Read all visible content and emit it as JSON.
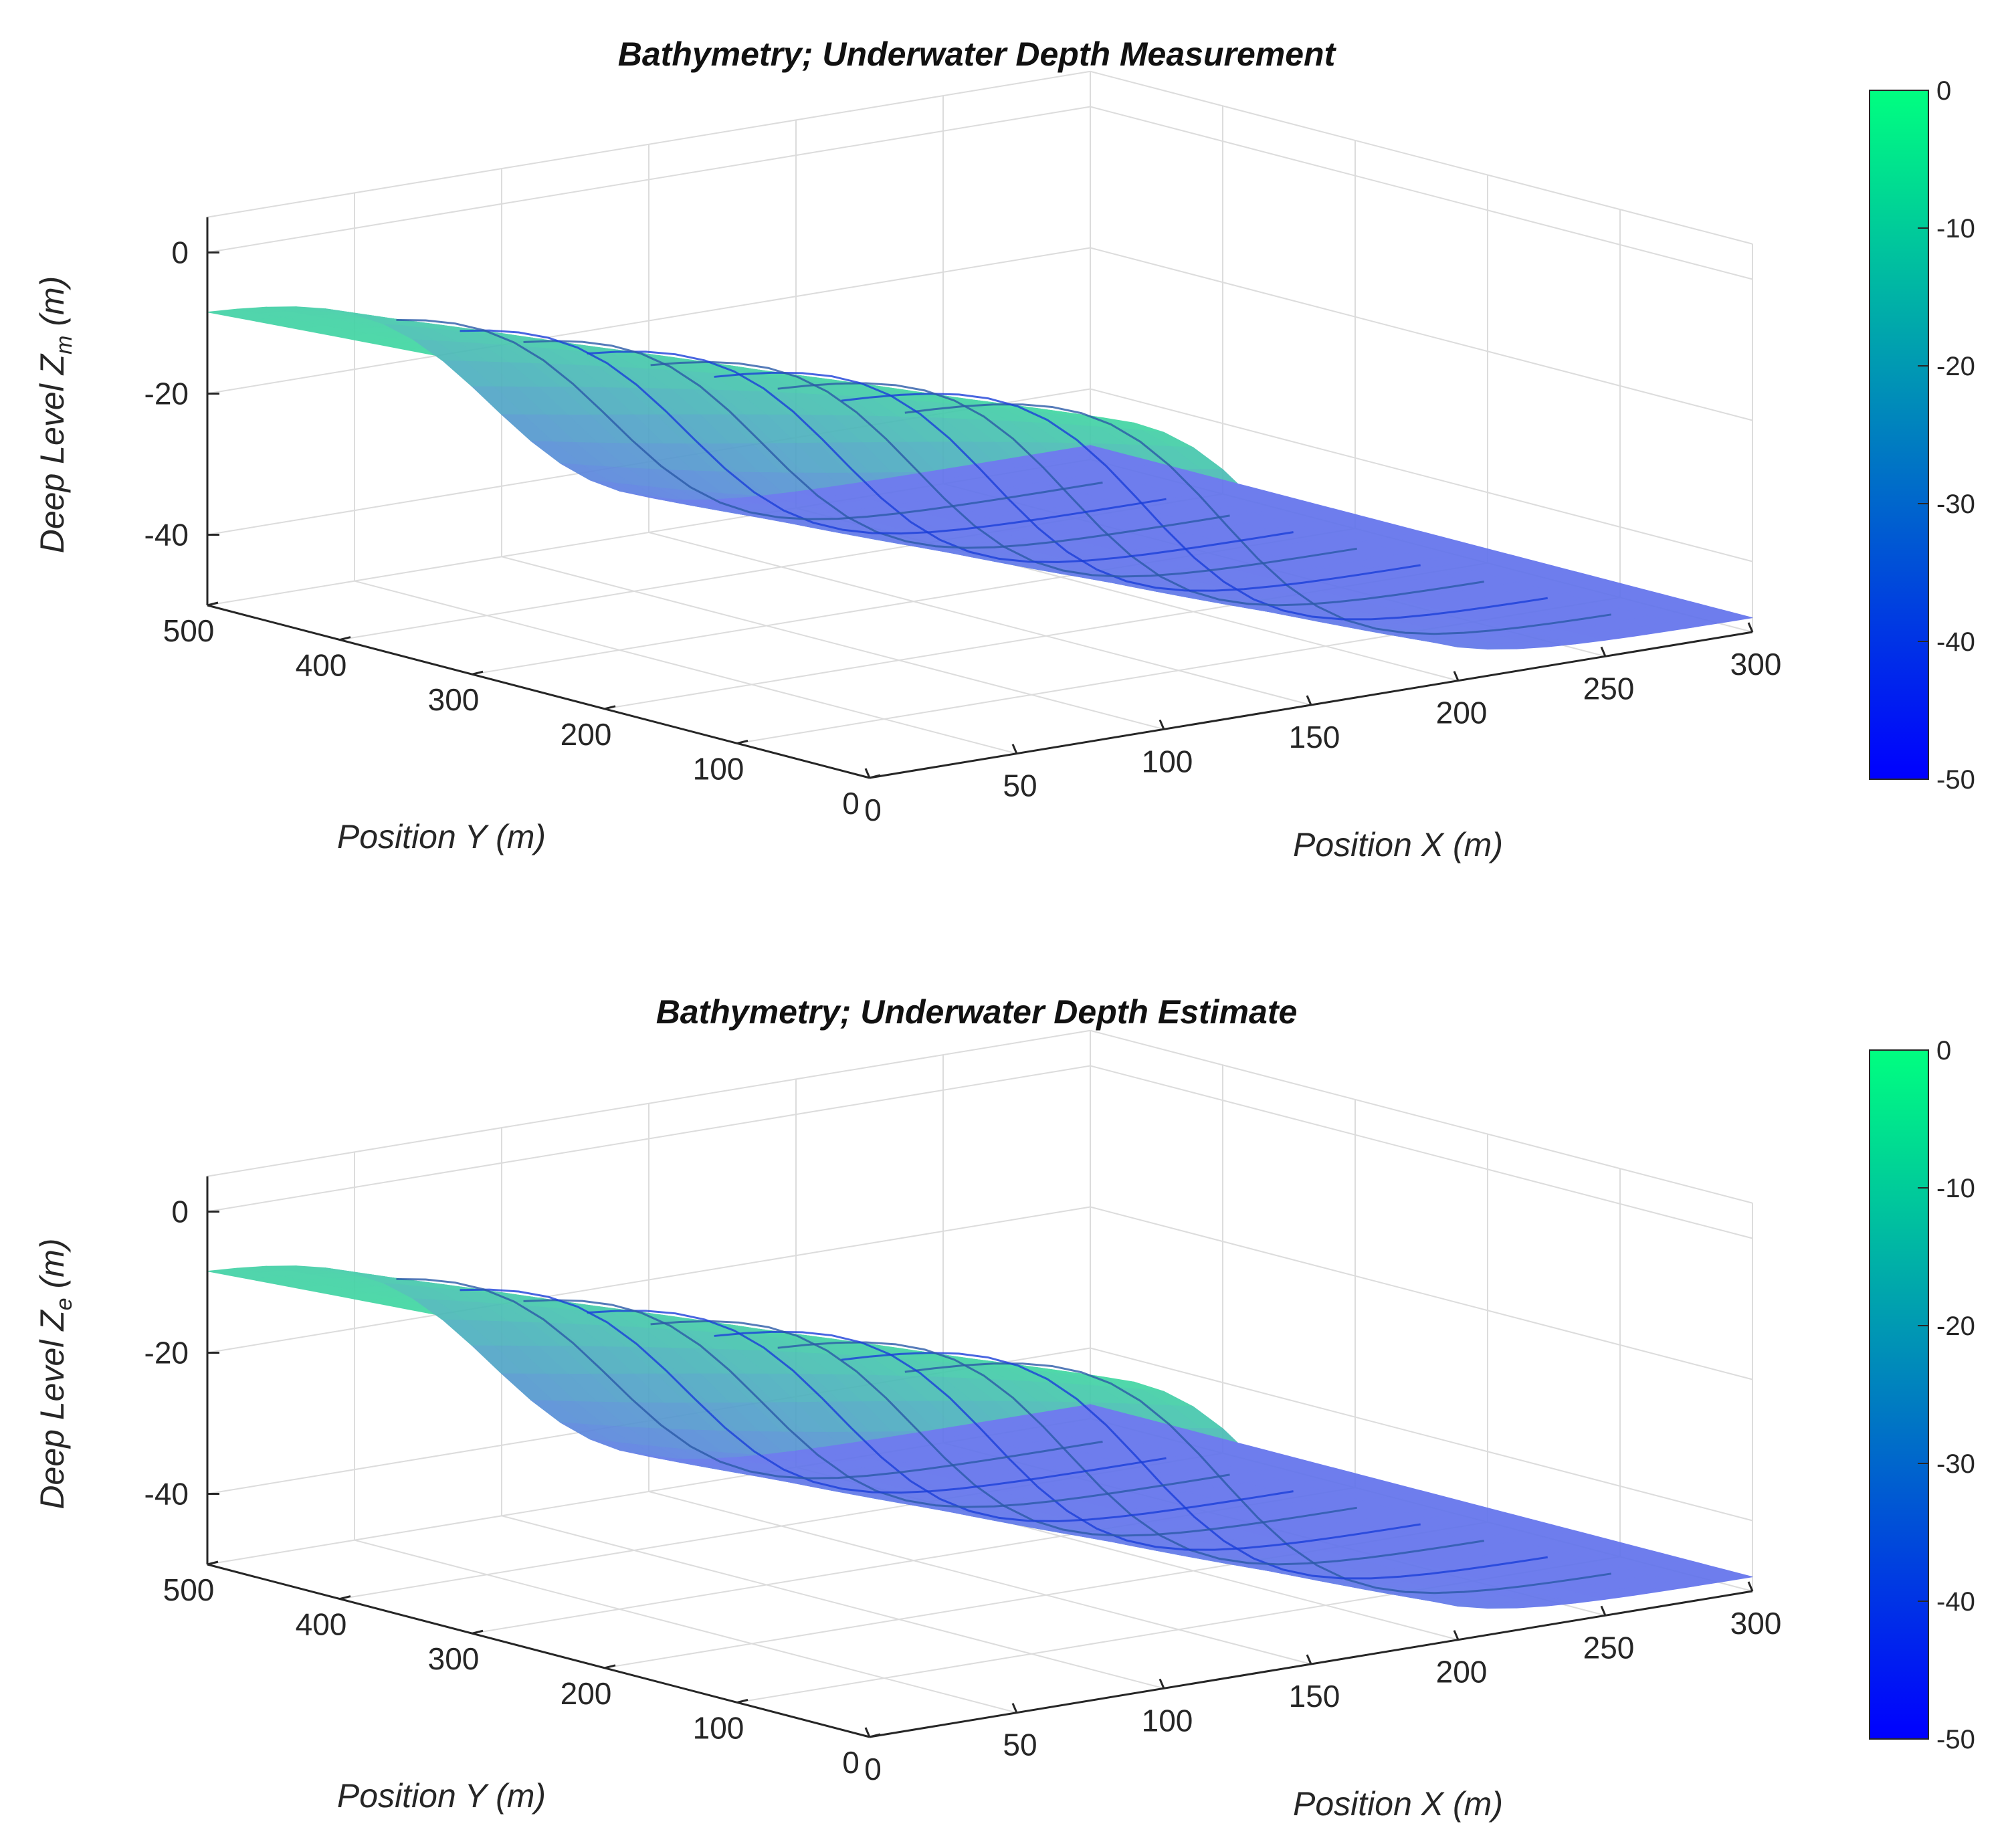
{
  "chart_data": [
    {
      "type": "surface3d",
      "title": "Bathymetry; Underwater Depth Measurement",
      "xlabel": "Position X (m)",
      "ylabel": "Position Y (m)",
      "zlabel_prefix": "Deep Level Z",
      "zlabel_sub": "m",
      "zlabel_suffix": " (m)",
      "xlim": [
        0,
        300
      ],
      "ylim": [
        0,
        500
      ],
      "zlim": [
        -50,
        5
      ],
      "xticks": [
        0,
        50,
        100,
        150,
        200,
        250,
        300
      ],
      "yticks": [
        0,
        100,
        200,
        300,
        400,
        500
      ],
      "zticks": [
        0,
        -20,
        -40
      ],
      "colorbar": {
        "range": [
          -50,
          0
        ],
        "ticks": [
          0,
          -10,
          -20,
          -30,
          -40,
          -50
        ],
        "colors": [
          "#0000ff",
          "#00ff80"
        ]
      },
      "grid": true,
      "colormap": "winter"
    },
    {
      "type": "surface3d",
      "title": "Bathymetry; Underwater Depth Estimate",
      "xlabel": "Position X (m)",
      "ylabel": "Position Y (m)",
      "zlabel_prefix": "Deep Level Z",
      "zlabel_sub": "e",
      "zlabel_suffix": " (m)",
      "xlim": [
        0,
        300
      ],
      "ylim": [
        0,
        500
      ],
      "zlim": [
        -50,
        5
      ],
      "xticks": [
        0,
        50,
        100,
        150,
        200,
        250,
        300
      ],
      "yticks": [
        0,
        100,
        200,
        300,
        400,
        500
      ],
      "zticks": [
        0,
        -20,
        -40
      ],
      "colorbar": {
        "range": [
          -50,
          0
        ],
        "ticks": [
          0,
          -10,
          -20,
          -30,
          -40,
          -50
        ],
        "colors": [
          "#0000ff",
          "#00ff80"
        ]
      },
      "grid": true,
      "colormap": "winter"
    }
  ]
}
